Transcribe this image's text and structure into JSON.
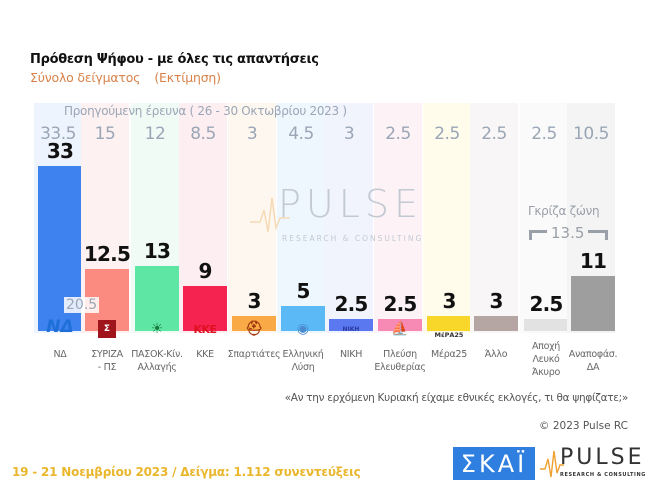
{
  "header": {
    "title": "Πρόθεση Ψήφου - με όλες τις απαντήσεις",
    "subtitle": "Σύνολο δείγματος",
    "subtitle_note": "(Εκτίμηση)"
  },
  "previous_survey_label": "Προηγούμενη έρευνα  ( 26 - 30 Οκτωβρίου 2023 )",
  "watermark": {
    "text": "PULSE",
    "sub": "RESEARCH & CONSULTING"
  },
  "grey_zone": {
    "label": "Γκρίζα ζώνη",
    "value": "13.5"
  },
  "question": "«Αν την ερχόμενη Κυριακή είχαμε εθνικές εκλογές, τι θα ψηφίζατε;»",
  "copyright": "© 2023 Pulse RC",
  "footer": {
    "text": "19 - 21  Νοεμβρίου  2023  /  Δείγμα:  1.112 συνεντεύξεις"
  },
  "logos": {
    "skai": "ΣΚΑΪ",
    "pulse": "PULSE",
    "pulse_sub": "RESEARCH & CONSULTING"
  },
  "parties": [
    {
      "label": "ΝΔ",
      "label2": "",
      "value": "33",
      "prev": "33.5",
      "color": "#3d82ee",
      "bg": "#eef4fd",
      "logo": "ΝΔ",
      "logo_color": "#1f6fd8",
      "extra_prev": "20.5"
    },
    {
      "label": "ΣΥΡΙΖΑ",
      "label2": "- ΠΣ",
      "value": "12.5",
      "prev": "15",
      "color": "#fb8a80",
      "bg": "#fdf1f1",
      "logo": "Σ",
      "logo_color": "#a0151b"
    },
    {
      "label": "ΠΑΣΟΚ-Κίν.",
      "label2": "Αλλαγής",
      "value": "13",
      "prev": "12",
      "color": "#5ee6a5",
      "bg": "#effbf4",
      "logo": "☀",
      "logo_color": "#1a7a3c"
    },
    {
      "label": "ΚΚΕ",
      "label2": "",
      "value": "9",
      "prev": "8.5",
      "color": "#f4234f",
      "bg": "#fdeef1",
      "logo": "ΚΚΕ",
      "logo_color": "#e01020"
    },
    {
      "label": "Σπαρτιάτες",
      "label2": "",
      "value": "3",
      "prev": "3",
      "color": "#f9a945",
      "bg": "#fef7ef",
      "logo": "⛑",
      "logo_color": "#a23a10"
    },
    {
      "label": "Ελληνική",
      "label2": "Λύση",
      "value": "5",
      "prev": "4.5",
      "color": "#5bbaf5",
      "bg": "#eef7fd",
      "logo": "◉",
      "logo_color": "#4a8bd0"
    },
    {
      "label": "ΝΙΚΗ",
      "label2": "",
      "value": "2.5",
      "prev": "3",
      "color": "#5a78f0",
      "bg": "#f1f3fd",
      "logo": "ΝΙΚΗ",
      "logo_color": "#2a3aa0"
    },
    {
      "label": "Πλεύση",
      "label2": "Ελευθερίας",
      "value": "2.5",
      "prev": "2.5",
      "color": "#f68ab5",
      "bg": "#fdf2f6",
      "logo": "⛵",
      "logo_color": "#8a4aa8"
    },
    {
      "label": "Μέρα25",
      "label2": "",
      "value": "3",
      "prev": "2.5",
      "color": "#f9d62a",
      "bg": "#fffcec",
      "logo": "ΜέΡΑ25",
      "logo_color": "#333"
    },
    {
      "label": "Άλλο",
      "label2": "",
      "value": "3",
      "prev": "2.5",
      "color": "#b5a6a4",
      "bg": "#f8f6f6",
      "logo": "",
      "logo_color": "#000"
    },
    {
      "label": "Αποχή",
      "label2": "Λευκό",
      "label3": "Άκυρο",
      "value": "2.5",
      "prev": "2.5",
      "color": "#e2e2e2",
      "bg": "#fafafa",
      "logo": "",
      "logo_color": "#000"
    },
    {
      "label": "Αναποφάσ.",
      "label2": "ΔΑ",
      "value": "11",
      "prev": "10.5",
      "color": "#9e9e9e",
      "bg": "#f4f4f4",
      "logo": "",
      "logo_color": "#000"
    }
  ],
  "chart_data": {
    "type": "bar",
    "title": "Πρόθεση Ψήφου - με όλες τις απαντήσεις",
    "subtitle": "Σύνολο δείγματος (Εκτίμηση)",
    "categories": [
      "ΝΔ",
      "ΣΥΡΙΖΑ - ΠΣ",
      "ΠΑΣΟΚ-Κίν. Αλλαγής",
      "ΚΚΕ",
      "Σπαρτιάτες",
      "Ελληνική Λύση",
      "ΝΙΚΗ",
      "Πλεύση Ελευθερίας",
      "Μέρα25",
      "Άλλο",
      "Αποχή Λευκό Άκυρο",
      "Αναποφάσ. ΔΑ"
    ],
    "series": [
      {
        "name": "19 - 21 Νοεμβρίου 2023",
        "values": [
          33,
          12.5,
          13,
          9,
          3,
          5,
          2.5,
          2.5,
          3,
          3,
          2.5,
          11
        ]
      },
      {
        "name": "Προηγούμενη έρευνα (26 - 30 Οκτωβρίου 2023)",
        "values": [
          33.5,
          15,
          12,
          8.5,
          3,
          4.5,
          3,
          2.5,
          2.5,
          2.5,
          2.5,
          10.5
        ]
      }
    ],
    "annotations": [
      "20.5 (ΝΔ-ΣΥΡΙΖΑ gap)",
      "Γκρίζα ζώνη 13.5"
    ],
    "xlabel": "",
    "ylabel": "%",
    "ylim": [
      0,
      35
    ],
    "grid": false
  }
}
